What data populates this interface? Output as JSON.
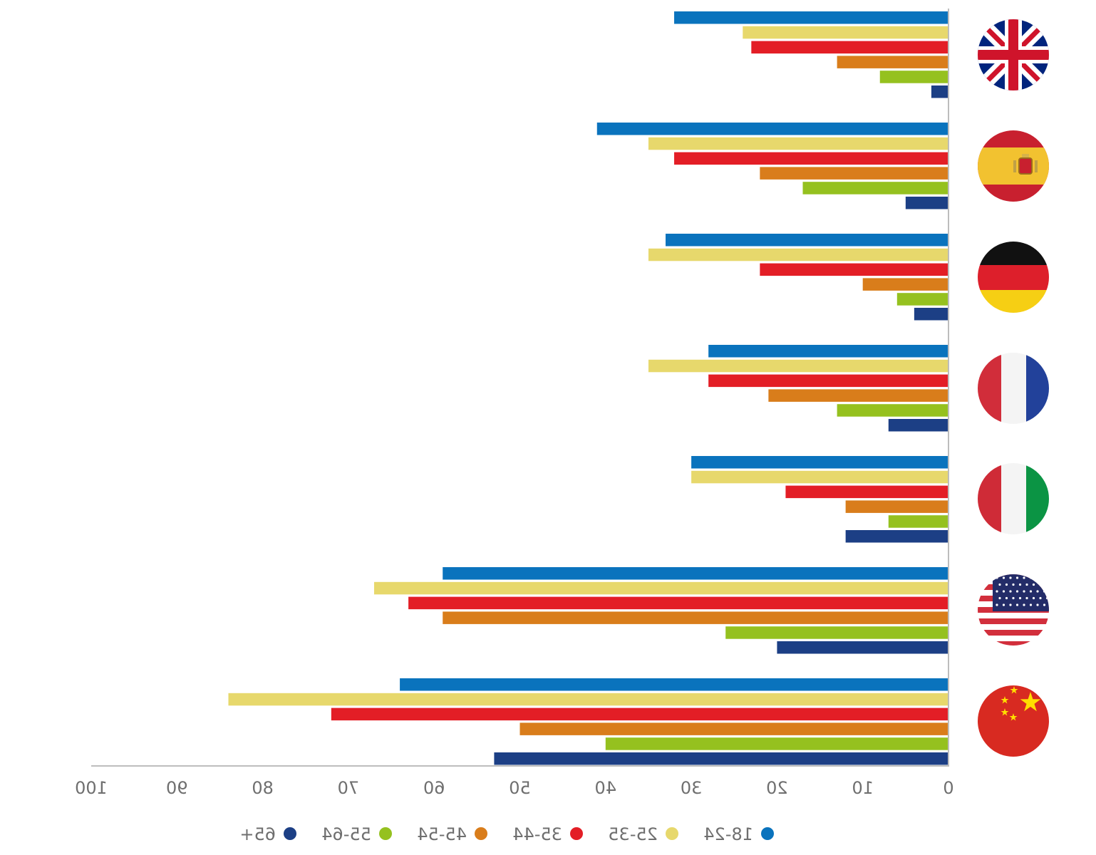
{
  "chart_data": {
    "type": "bar",
    "orientation": "horizontal",
    "axis_direction": "right-to-left",
    "mirrored_text": true,
    "categories": [
      "United Kingdom",
      "Spain",
      "Germany",
      "France",
      "Italy",
      "United States",
      "China"
    ],
    "category_icons": [
      "uk-flag-icon",
      "spain-flag-icon",
      "germany-flag-icon",
      "france-flag-icon",
      "italy-flag-icon",
      "usa-flag-icon",
      "china-flag-icon"
    ],
    "series": [
      {
        "name": "18-24",
        "color": "#0a73bd",
        "values": [
          32,
          41,
          33,
          28,
          30,
          59,
          64
        ]
      },
      {
        "name": "25-35",
        "color": "#e7d86c",
        "values": [
          24,
          35,
          35,
          35,
          30,
          67,
          84
        ]
      },
      {
        "name": "35-44",
        "color": "#e31e26",
        "values": [
          23,
          32,
          22,
          28,
          19,
          63,
          72
        ]
      },
      {
        "name": "45-54",
        "color": "#d97d1b",
        "values": [
          13,
          22,
          10,
          21,
          12,
          59,
          50
        ]
      },
      {
        "name": "55-64",
        "color": "#95c11f",
        "values": [
          8,
          17,
          6,
          13,
          7,
          26,
          40
        ]
      },
      {
        "name": "65+",
        "color": "#1c3f85",
        "values": [
          2,
          5,
          4,
          7,
          12,
          20,
          53
        ]
      }
    ],
    "x_ticks": [
      0,
      10,
      20,
      30,
      40,
      50,
      60,
      70,
      80,
      90,
      100
    ],
    "xlim": [
      0,
      100
    ],
    "grid": false,
    "legend_position": "bottom",
    "xlabel": "",
    "ylabel": "",
    "title": ""
  }
}
